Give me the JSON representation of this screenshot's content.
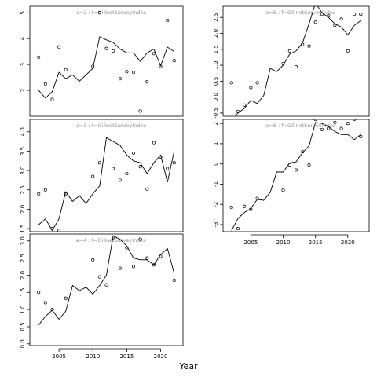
{
  "figure": {
    "xlabel": "Year"
  },
  "chart_data": [
    {
      "type": "line+scatter",
      "title": "a=2  :  f=GillnetSurveyIndex",
      "years": [
        2002,
        2003,
        2004,
        2005,
        2006,
        2007,
        2008,
        2009,
        2010,
        2011,
        2012,
        2013,
        2014,
        2015,
        2016,
        2017,
        2018,
        2019,
        2020,
        2021,
        2022
      ],
      "fitted": [
        2.0,
        1.7,
        1.95,
        2.7,
        2.45,
        2.6,
        2.35,
        2.6,
        2.85,
        4.07,
        3.95,
        3.85,
        3.6,
        3.45,
        3.45,
        3.12,
        3.45,
        3.6,
        2.95,
        3.67,
        3.5
      ],
      "observed": [
        3.28,
        2.25,
        1.65,
        3.68,
        2.8,
        null,
        null,
        null,
        2.93,
        5.0,
        3.62,
        3.52,
        2.45,
        2.72,
        2.7,
        1.2,
        2.33,
        3.42,
        2.93,
        4.7,
        3.15
      ],
      "ylim": [
        1.0,
        5.25
      ],
      "yticks": [
        2,
        3,
        4,
        5
      ]
    },
    {
      "type": "line+scatter",
      "title": "a=5  :  f=GillnetSurveyIndex",
      "years": [
        2002,
        2003,
        2004,
        2005,
        2006,
        2007,
        2008,
        2009,
        2010,
        2011,
        2012,
        2013,
        2014,
        2015,
        2016,
        2017,
        2018,
        2019,
        2020,
        2021,
        2022
      ],
      "fitted": [
        -0.75,
        -0.5,
        -0.35,
        -0.1,
        -0.2,
        0.05,
        0.9,
        0.8,
        1.0,
        1.35,
        1.45,
        1.7,
        2.3,
        2.95,
        2.65,
        2.5,
        2.3,
        2.2,
        1.95,
        2.25,
        2.4
      ],
      "observed": [
        0.45,
        -0.45,
        -0.25,
        0.3,
        0.45,
        null,
        null,
        null,
        1.05,
        1.45,
        0.95,
        1.65,
        1.6,
        2.35,
        2.6,
        2.55,
        2.25,
        2.45,
        1.45,
        2.6,
        2.6
      ],
      "ylim": [
        -0.6,
        2.85
      ],
      "yticks": [
        -0.5,
        0.0,
        0.5,
        1.0,
        1.5,
        2.0,
        2.5
      ]
    },
    {
      "type": "line+scatter",
      "title": "a=3  :  f=GillnetSurveyIndex",
      "years": [
        2002,
        2003,
        2004,
        2005,
        2006,
        2007,
        2008,
        2009,
        2010,
        2011,
        2012,
        2013,
        2014,
        2015,
        2016,
        2017,
        2018,
        2019,
        2020,
        2021,
        2022
      ],
      "fitted": [
        1.6,
        1.75,
        1.45,
        1.75,
        2.45,
        2.2,
        2.35,
        2.15,
        2.4,
        2.6,
        3.85,
        3.75,
        3.65,
        3.4,
        3.25,
        3.2,
        2.92,
        3.2,
        3.4,
        2.7,
        3.5
      ],
      "observed": [
        2.4,
        2.5,
        1.5,
        1.45,
        2.4,
        null,
        null,
        null,
        2.85,
        3.2,
        4.35,
        3.05,
        2.75,
        2.92,
        3.45,
        3.1,
        2.52,
        3.72,
        3.35,
        3.05,
        3.2
      ],
      "ylim": [
        1.42,
        4.32
      ],
      "yticks": [
        1.5,
        2.0,
        2.5,
        3.0,
        3.5,
        4.0
      ]
    },
    {
      "type": "line+scatter",
      "title": "a=6  :  f=GillnetSurveyIndex",
      "years": [
        2002,
        2003,
        2004,
        2005,
        2006,
        2007,
        2008,
        2009,
        2010,
        2011,
        2012,
        2013,
        2014,
        2015,
        2016,
        2017,
        2018,
        2019,
        2020,
        2021,
        2022
      ],
      "fitted": [
        -3.3,
        -2.7,
        -2.4,
        -2.2,
        -1.75,
        -1.8,
        -1.4,
        -0.4,
        -0.4,
        0.05,
        0.1,
        0.55,
        0.9,
        2.05,
        2.0,
        1.85,
        1.6,
        1.45,
        1.45,
        1.2,
        1.45
      ],
      "observed": [
        -2.15,
        -3.2,
        -2.1,
        -2.25,
        -1.7,
        null,
        null,
        null,
        -1.3,
        -0.05,
        -0.3,
        0.6,
        -0.05,
        2.2,
        1.7,
        1.75,
        2.05,
        1.75,
        2.0,
        2.2,
        1.35
      ],
      "ylim": [
        -3.35,
        2.2
      ],
      "yticks": [
        -3,
        -2,
        -1,
        0,
        1,
        2
      ]
    },
    {
      "type": "line+scatter",
      "title": "a=4  :  f=GillnetSurveyIndex",
      "years": [
        2002,
        2003,
        2004,
        2005,
        2006,
        2007,
        2008,
        2009,
        2010,
        2011,
        2012,
        2013,
        2014,
        2015,
        2016,
        2017,
        2018,
        2019,
        2020,
        2021,
        2022
      ],
      "fitted": [
        0.55,
        0.8,
        0.98,
        0.72,
        0.95,
        1.7,
        1.55,
        1.65,
        1.45,
        1.7,
        2.0,
        3.15,
        3.05,
        2.85,
        2.5,
        2.45,
        2.45,
        2.3,
        2.6,
        2.78,
        2.05
      ],
      "observed": [
        1.5,
        1.2,
        1.0,
        -0.1,
        1.33,
        null,
        null,
        null,
        2.45,
        1.95,
        1.72,
        3.1,
        2.2,
        2.8,
        2.25,
        3.05,
        2.5,
        2.3,
        2.55,
        3.25,
        1.85
      ],
      "ylim": [
        -0.05,
        3.2
      ],
      "yticks": [
        0.0,
        0.5,
        1.0,
        1.5,
        2.0,
        2.5,
        3.0
      ]
    }
  ],
  "xaxis": {
    "xlim": [
      2000.7,
      2023.3
    ],
    "ticks": [
      2005,
      2010,
      2015,
      2020
    ],
    "tick_labels": [
      "2005",
      "2010",
      "2015",
      "2020"
    ]
  }
}
